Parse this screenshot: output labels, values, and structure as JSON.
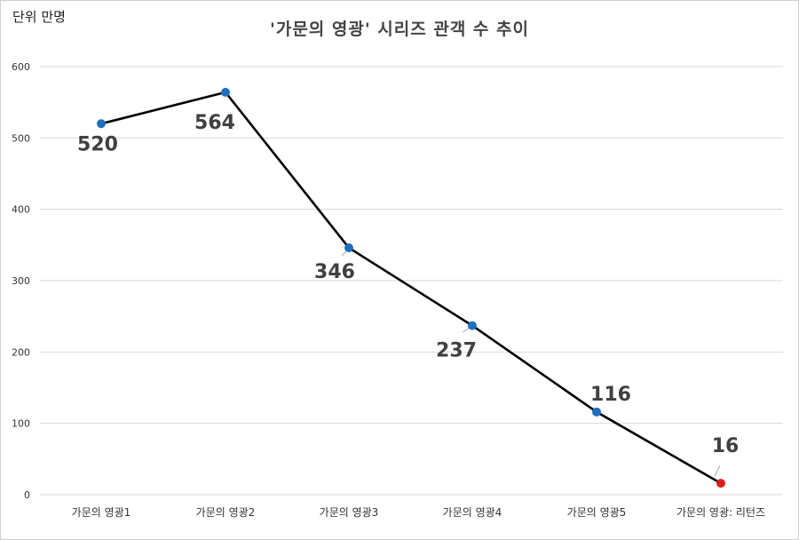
{
  "chart_data": {
    "type": "line",
    "title": "'가문의 영광' 시리즈 관객 수 추이",
    "unit_label": "단위 만명",
    "categories": [
      "가문의 영광1",
      "가문의 영광2",
      "가문의 영광3",
      "가문의 영광4",
      "가문의 영광5",
      "가문의 영광: 리턴즈"
    ],
    "values": [
      520,
      564,
      346,
      237,
      116,
      16
    ],
    "data_labels": [
      "520",
      "564",
      "346",
      "237",
      "116",
      "16"
    ],
    "ylim": [
      0,
      600
    ],
    "y_ticks": [
      0,
      100,
      200,
      300,
      400,
      500,
      600
    ],
    "grid": true,
    "legend": "none",
    "colors": {
      "line": "#000000",
      "marker": "#1f6fbf",
      "highlight_marker": "#e01b1b",
      "grid": "#d9d9d9",
      "data_label": "#404040"
    },
    "highlight_index": 5
  }
}
